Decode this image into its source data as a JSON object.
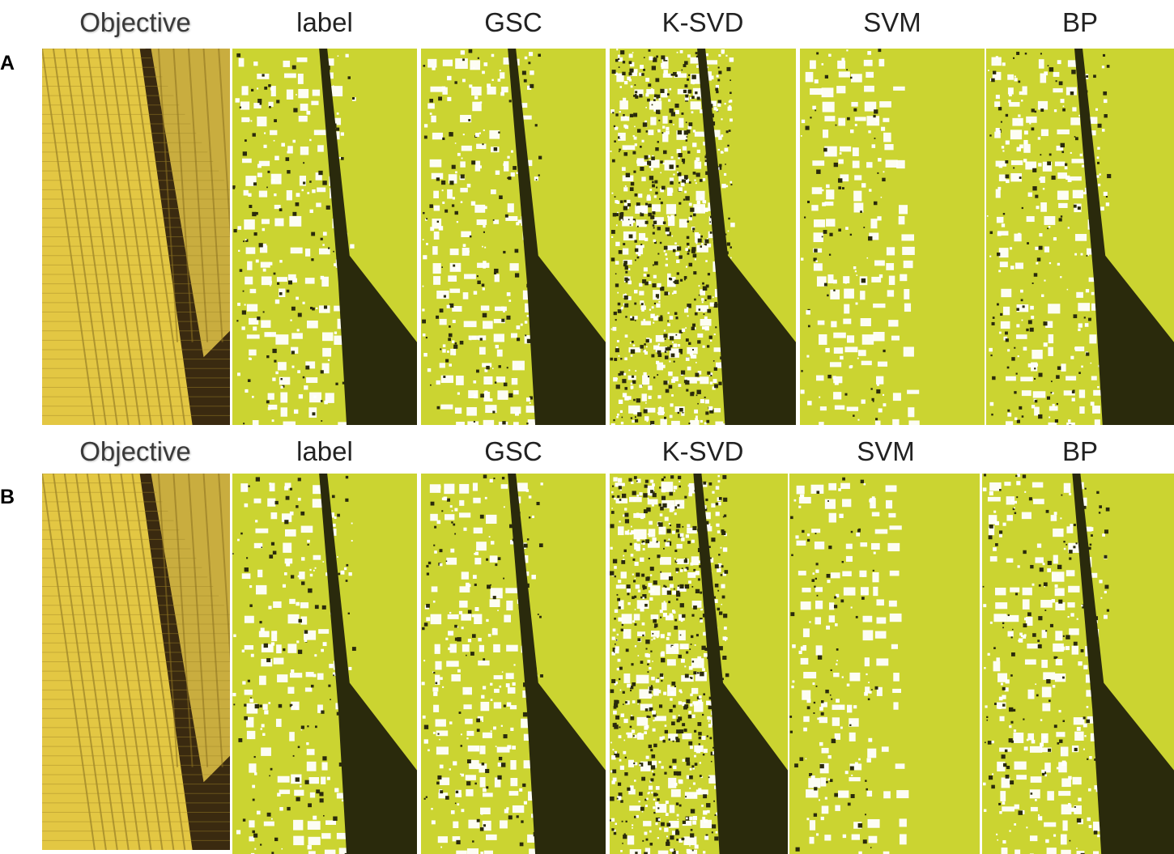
{
  "figure": {
    "rows": [
      {
        "letter": "A",
        "columns": [
          "Objective",
          "label",
          "GSC",
          "K-SVD",
          "SVM",
          "BP"
        ]
      },
      {
        "letter": "B",
        "columns": [
          "Objective",
          "label",
          "GSC",
          "K-SVD",
          "SVM",
          "BP"
        ]
      }
    ]
  },
  "colors": {
    "segment_yellow": "#cbd431",
    "segment_dark": "#2a2a0c",
    "segment_white": "#ffffff",
    "corn_kernel": "#e3c743",
    "corn_shadow": "#3a2a10"
  }
}
